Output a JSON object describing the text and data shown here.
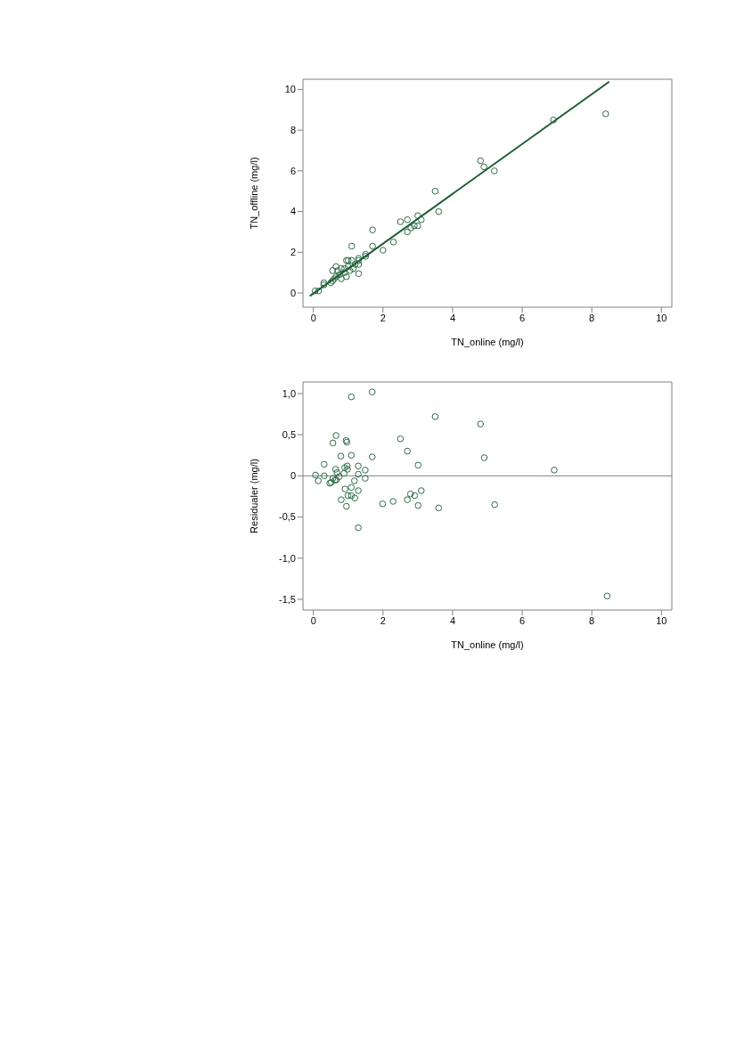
{
  "chart_data": [
    {
      "type": "scatter",
      "xlabel": "TN_online (mg/l)",
      "ylabel": "TN_offline (mg/l)",
      "xlim": [
        -0.3,
        10.3
      ],
      "ylim": [
        -0.7,
        10.5
      ],
      "xticks": [
        0,
        2,
        4,
        6,
        8,
        10
      ],
      "yticks": [
        0,
        2,
        4,
        6,
        8,
        10
      ],
      "series": [
        {
          "type": "scatter",
          "marker": "circle",
          "color": "#2e6b45",
          "x": [
            0.05,
            0.15,
            0.3,
            0.3,
            0.5,
            0.55,
            0.55,
            0.6,
            0.65,
            0.65,
            0.7,
            0.75,
            0.8,
            0.8,
            0.9,
            0.9,
            0.95,
            0.95,
            1.0,
            1.0,
            1.05,
            1.1,
            1.1,
            1.15,
            1.2,
            1.3,
            1.3,
            1.3,
            1.3,
            1.5,
            1.5,
            1.7,
            1.7,
            2.0,
            2.3,
            2.5,
            2.7,
            2.7,
            2.8,
            2.9,
            3.0,
            3.0,
            3.1,
            3.5,
            3.6,
            4.8,
            4.9,
            5.2,
            6.9,
            8.4
          ],
          "values": [
            0.1,
            0.1,
            0.5,
            0.4,
            0.5,
            0.6,
            1.1,
            0.7,
            1.3,
            0.8,
            1.1,
            0.9,
            1.2,
            0.7,
            1.0,
            1.2,
            1.6,
            0.8,
            1.3,
            1.6,
            1.1,
            2.3,
            1.6,
            1.2,
            1.4,
            1.6,
            1.7,
            0.95,
            1.4,
            1.8,
            1.9,
            3.1,
            2.3,
            2.1,
            2.5,
            3.5,
            3.6,
            3.0,
            3.2,
            3.3,
            3.8,
            3.3,
            3.6,
            5.0,
            4.0,
            6.5,
            6.2,
            6.0,
            8.5,
            8.8
          ]
        },
        {
          "type": "line",
          "color": "#1a5c32",
          "x": [
            -0.1,
            8.5
          ],
          "values": [
            -0.15,
            10.38
          ]
        }
      ]
    },
    {
      "type": "scatter",
      "xlabel": "TN_online (mg/l)",
      "ylabel": "Residualer (mg/l)",
      "xlim": [
        -0.3,
        10.3
      ],
      "ylim": [
        -1.63,
        1.14
      ],
      "xticks": [
        0,
        2,
        4,
        6,
        8,
        10
      ],
      "yticks": [
        {
          "value": -1.5,
          "label": "-1,5"
        },
        {
          "value": -1,
          "label": "-1,0"
        },
        {
          "value": -0.5,
          "label": "-0,5"
        },
        {
          "value": 0,
          "label": "0"
        },
        {
          "value": 0.5,
          "label": "0,5"
        },
        {
          "value": 1,
          "label": "1,0"
        }
      ],
      "ref_lines": [
        {
          "axis": "y",
          "value": 0,
          "color": "#808080"
        }
      ],
      "series": [
        {
          "type": "scatter",
          "marker": "circle",
          "color": "#2e6b45",
          "x": [
            0.06,
            0.14,
            0.31,
            0.31,
            0.47,
            0.51,
            0.56,
            0.56,
            0.62,
            0.65,
            0.64,
            0.66,
            0.68,
            0.74,
            0.79,
            0.8,
            0.88,
            0.9,
            0.91,
            0.94,
            0.96,
            0.97,
            0.98,
            0.95,
            0.99,
            1.09,
            1.09,
            1.09,
            1.09,
            1.18,
            1.19,
            1.29,
            1.29,
            1.29,
            1.29,
            1.49,
            1.49,
            1.69,
            1.69,
            1.99,
            2.29,
            2.5,
            2.7,
            2.7,
            2.79,
            2.91,
            3.01,
            3.01,
            3.1,
            3.5,
            3.6,
            4.8,
            4.91,
            5.21,
            6.92,
            8.44
          ],
          "values": [
            0.01,
            -0.06,
            0.14,
            0.0,
            -0.09,
            -0.08,
            0.4,
            -0.03,
            -0.05,
            0.49,
            0.08,
            -0.05,
            0.04,
            -0.01,
            0.24,
            -0.29,
            0.03,
            0.1,
            -0.16,
            0.43,
            0.41,
            0.12,
            0.08,
            -0.37,
            -0.24,
            0.96,
            0.25,
            -0.14,
            -0.24,
            -0.06,
            -0.27,
            0.12,
            0.02,
            -0.18,
            -0.63,
            0.07,
            -0.03,
            1.02,
            0.23,
            -0.34,
            -0.31,
            0.45,
            0.3,
            -0.29,
            -0.22,
            -0.24,
            0.13,
            -0.36,
            -0.18,
            0.72,
            -0.39,
            0.63,
            0.22,
            -0.35,
            0.07,
            -1.46
          ]
        }
      ]
    }
  ]
}
